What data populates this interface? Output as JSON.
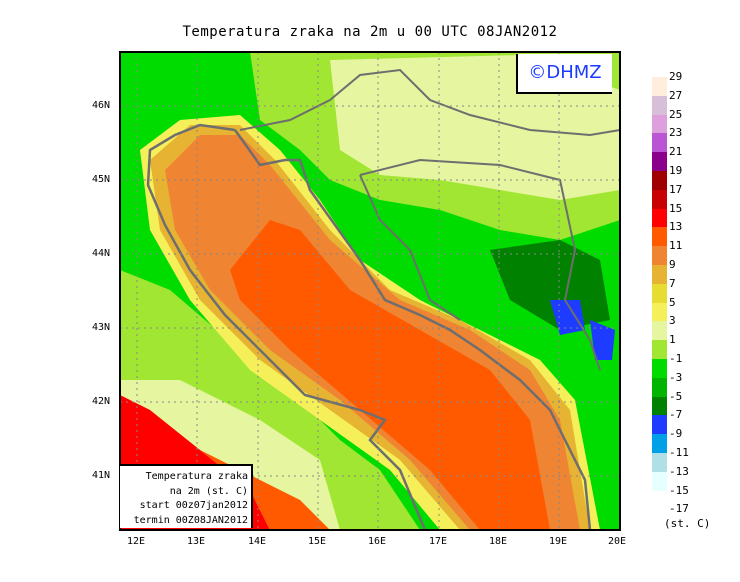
{
  "title": "Temperatura zraka na 2m u 00 UTC 08JAN2012",
  "logo": "©DHMZ",
  "legend_box": {
    "line1": "Temperatura zraka",
    "line2": "na 2m (st. C)",
    "line3": "start 00z07jan2012",
    "line4": "termin 00Z08JAN2012"
  },
  "lon_labels": [
    "12E",
    "13E",
    "14E",
    "15E",
    "16E",
    "17E",
    "18E",
    "19E",
    "20E"
  ],
  "lat_labels": [
    "46N",
    "45N",
    "44N",
    "43N",
    "42N",
    "41N"
  ],
  "colorbar": {
    "unit": "(st. C)",
    "labels": [
      "29",
      "27",
      "25",
      "23",
      "21",
      "19",
      "17",
      "15",
      "13",
      "11",
      "9",
      "7",
      "5",
      "3",
      "1",
      "-1",
      "-3",
      "-5",
      "-7",
      "-9",
      "-11",
      "-13",
      "-15",
      "-17"
    ],
    "colors": [
      "#ffeedc",
      "#d8bfd8",
      "#dda0dd",
      "#ba55d3",
      "#8b008b",
      "#a00000",
      "#c80000",
      "#ff0000",
      "#ff5a00",
      "#ef8432",
      "#e6b432",
      "#e6dc32",
      "#f5f05a",
      "#e6f5a0",
      "#a0e632",
      "#00dc00",
      "#00b400",
      "#008200",
      "#1e3cff",
      "#00a0e6",
      "#b0e0e6",
      "#e6ffff"
    ]
  }
}
